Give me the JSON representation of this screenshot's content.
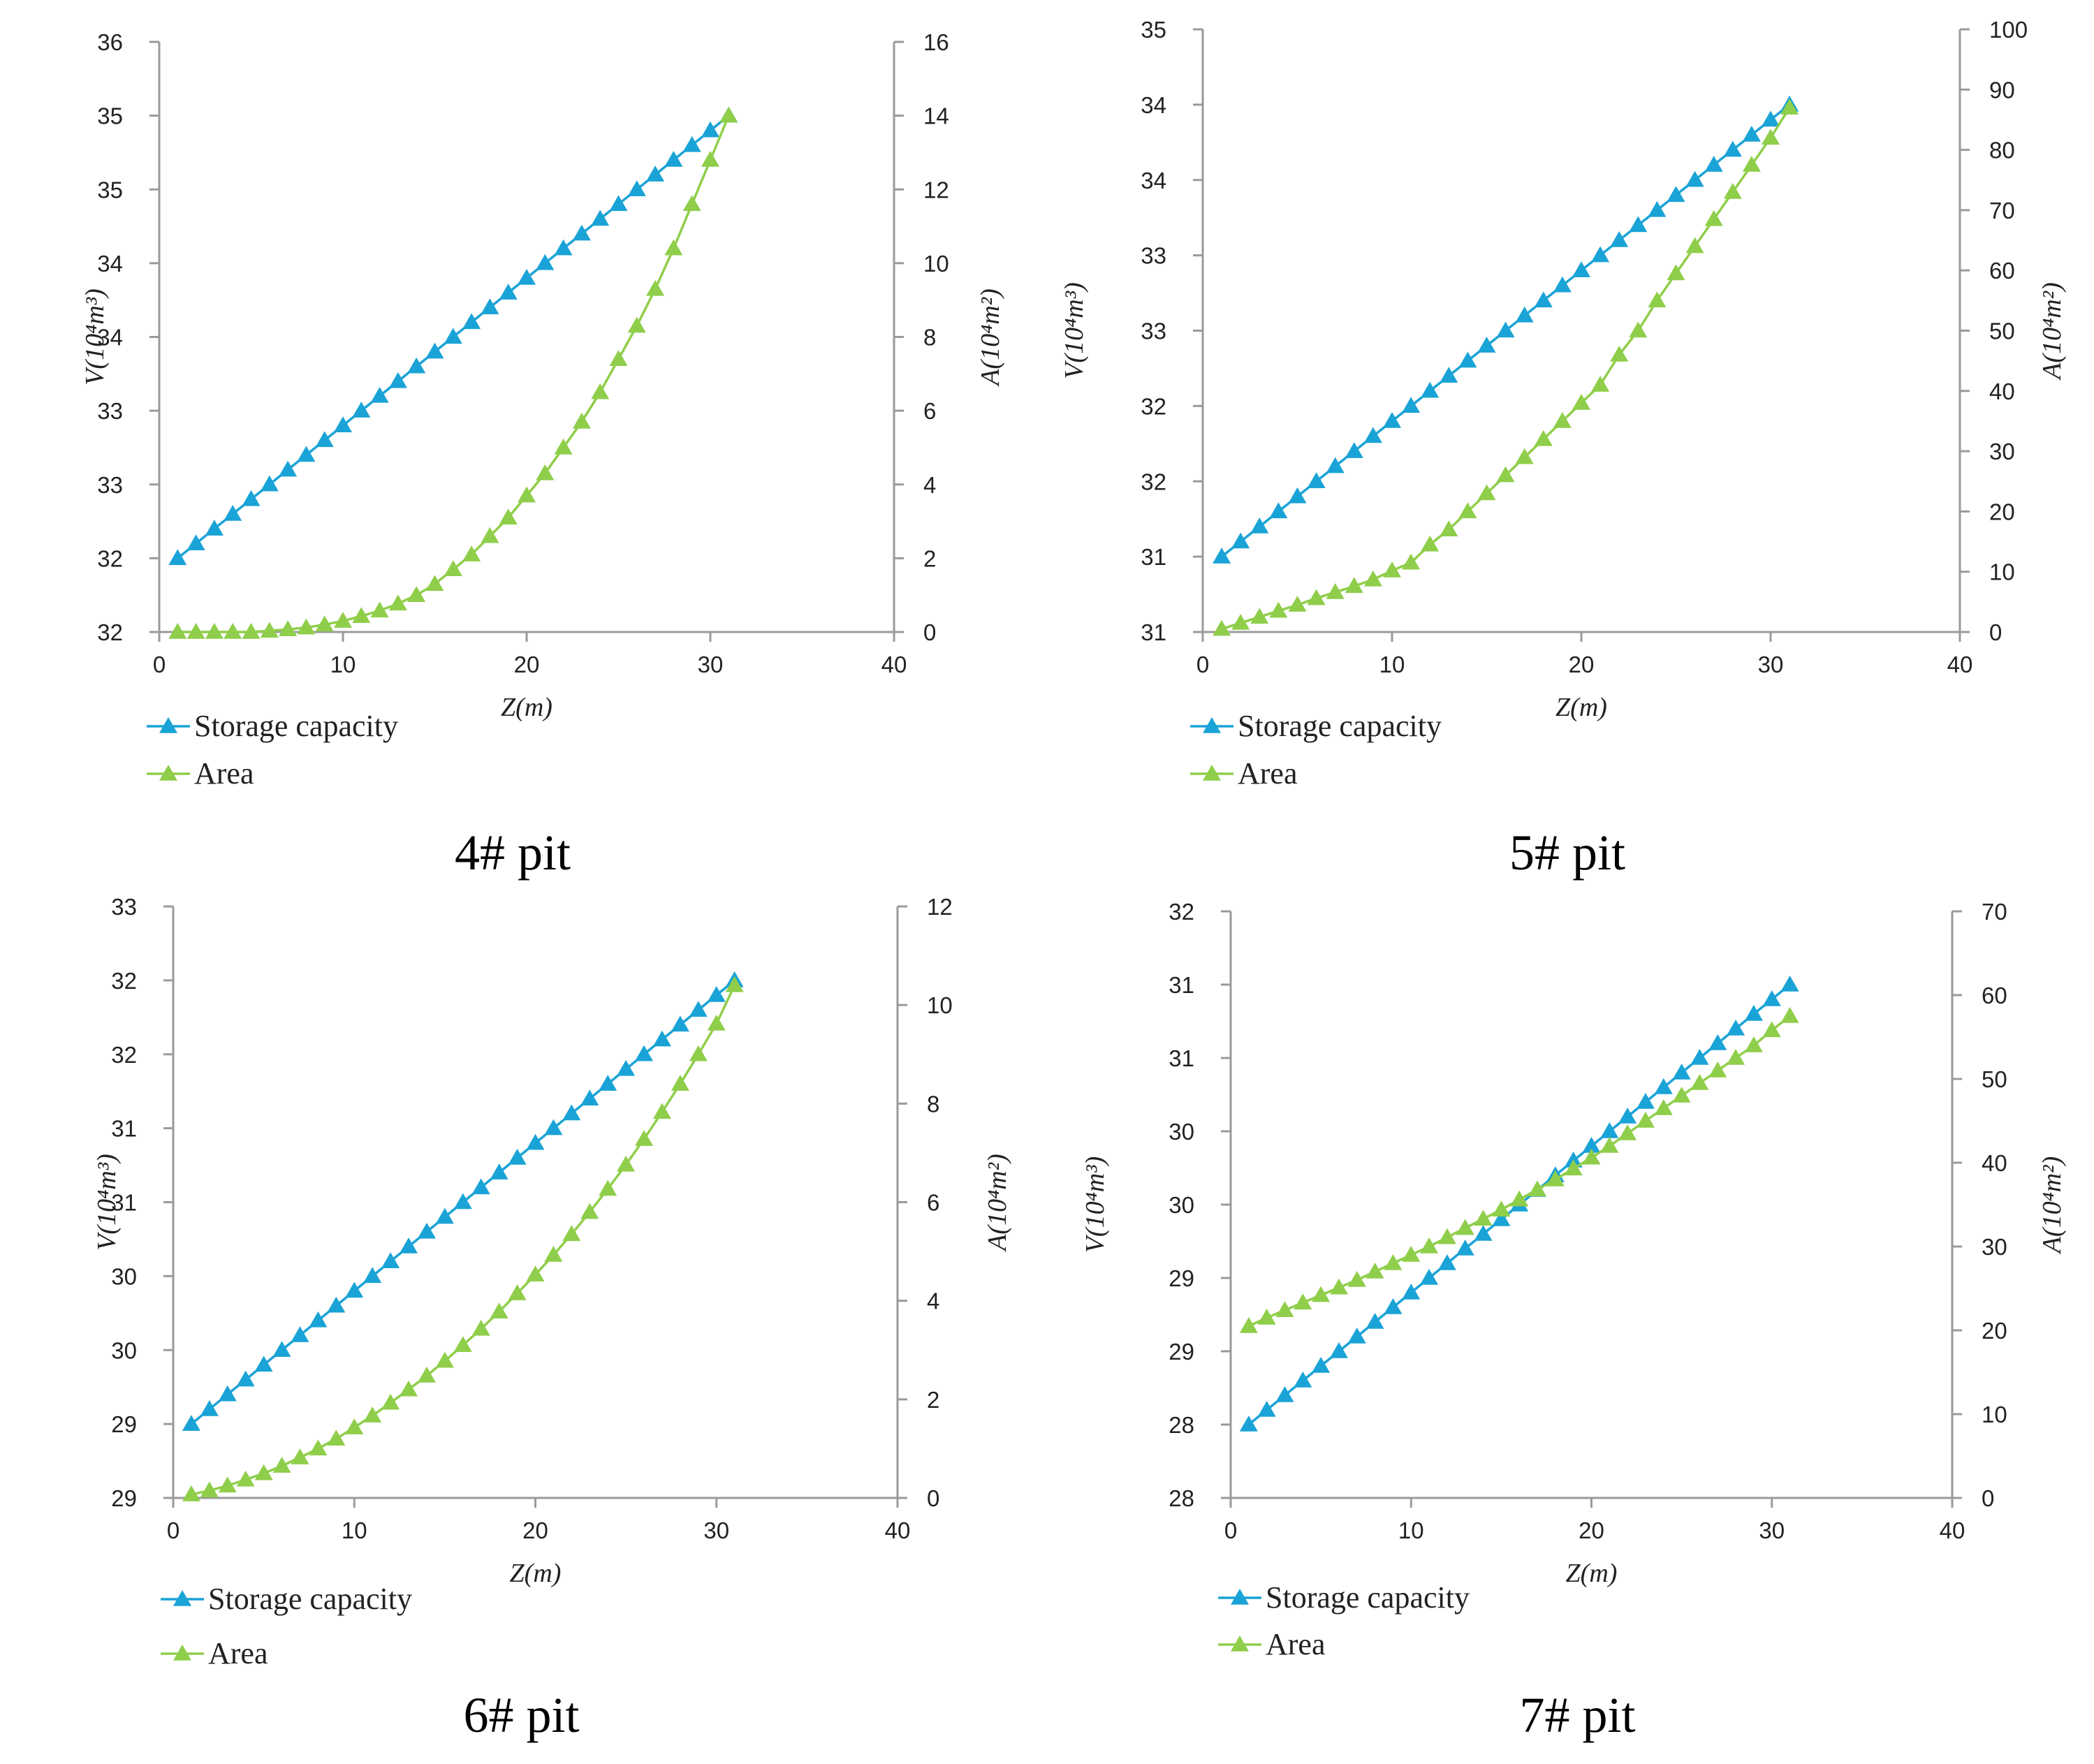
{
  "colors": {
    "storage": "#1aa3d6",
    "area": "#8fce4a",
    "axis": "#9a9a9a"
  },
  "chart_data": [
    {
      "type": "line",
      "caption": "4# pit",
      "xlabel": "Z(m)",
      "ylabel_left": "V(10⁴m³)",
      "ylabel_right": "A(10⁴m²)",
      "xlim": [
        0,
        40
      ],
      "xticks": [
        "0",
        "10",
        "20",
        "30",
        "40"
      ],
      "ylim_left": [
        32,
        36
      ],
      "yticks_left": [
        "32",
        "32",
        "33",
        "33",
        "34",
        "34",
        "35",
        "35",
        "36"
      ],
      "ylim_right": [
        0,
        16
      ],
      "yticks_right": [
        "0",
        "2",
        "4",
        "6",
        "8",
        "10",
        "12",
        "14",
        "16"
      ],
      "x": [
        1,
        2,
        3,
        4,
        5,
        6,
        7,
        8,
        9,
        10,
        11,
        12,
        13,
        14,
        15,
        16,
        17,
        18,
        19,
        20,
        21,
        22,
        23,
        24,
        25,
        26,
        27,
        28,
        29,
        30,
        31
      ],
      "series": [
        {
          "name": "Storage capacity",
          "axis": "left",
          "values": [
            32.5,
            32.6,
            32.7,
            32.8,
            32.9,
            33.0,
            33.1,
            33.2,
            33.3,
            33.4,
            33.5,
            33.6,
            33.7,
            33.8,
            33.9,
            34.0,
            34.1,
            34.2,
            34.3,
            34.4,
            34.5,
            34.6,
            34.7,
            34.8,
            34.9,
            35.0,
            35.1,
            35.2,
            35.3,
            35.4,
            35.5
          ]
        },
        {
          "name": "Area",
          "axis": "right",
          "values": [
            0,
            0,
            0,
            0,
            0,
            0.03,
            0.07,
            0.12,
            0.2,
            0.3,
            0.43,
            0.58,
            0.77,
            1.0,
            1.3,
            1.7,
            2.1,
            2.6,
            3.1,
            3.7,
            4.3,
            5.0,
            5.7,
            6.5,
            7.4,
            8.3,
            9.3,
            10.4,
            11.6,
            12.8,
            14.0
          ]
        }
      ]
    },
    {
      "type": "line",
      "caption": "5# pit",
      "xlabel": "Z(m)",
      "ylabel_left": "V(10⁴m³)",
      "ylabel_right": "A(10⁴m²)",
      "xlim": [
        0,
        40
      ],
      "xticks": [
        "0",
        "10",
        "20",
        "30",
        "40"
      ],
      "ylim_left": [
        31,
        35
      ],
      "yticks_left": [
        "31",
        "31",
        "32",
        "32",
        "33",
        "33",
        "34",
        "34",
        "35"
      ],
      "ylim_right": [
        0,
        100
      ],
      "yticks_right": [
        "0",
        "10",
        "20",
        "30",
        "40",
        "50",
        "60",
        "70",
        "80",
        "90",
        "100"
      ],
      "x": [
        1,
        2,
        3,
        4,
        5,
        6,
        7,
        8,
        9,
        10,
        11,
        12,
        13,
        14,
        15,
        16,
        17,
        18,
        19,
        20,
        21,
        22,
        23,
        24,
        25,
        26,
        27,
        28,
        29,
        30,
        31
      ],
      "series": [
        {
          "name": "Storage capacity",
          "axis": "left",
          "values": [
            31.5,
            31.6,
            31.7,
            31.8,
            31.9,
            32.0,
            32.1,
            32.2,
            32.3,
            32.4,
            32.5,
            32.6,
            32.7,
            32.8,
            32.9,
            33.0,
            33.1,
            33.2,
            33.3,
            33.4,
            33.5,
            33.6,
            33.7,
            33.8,
            33.9,
            34.0,
            34.1,
            34.2,
            34.3,
            34.4,
            34.5
          ]
        },
        {
          "name": "Area",
          "axis": "right",
          "values": [
            0.5,
            1.5,
            2.5,
            3.5,
            4.5,
            5.6,
            6.6,
            7.6,
            8.7,
            10.2,
            11.5,
            14.5,
            17,
            20,
            23,
            26,
            29,
            32,
            35,
            38,
            41,
            46,
            50,
            55,
            59.5,
            64,
            68.5,
            73,
            77.5,
            82,
            87
          ]
        }
      ]
    },
    {
      "type": "line",
      "caption": "6# pit",
      "xlabel": "Z(m)",
      "ylabel_left": "V(10⁴m³)",
      "ylabel_right": "A(10⁴m²)",
      "xlim": [
        0,
        40
      ],
      "xticks": [
        "0",
        "10",
        "20",
        "30",
        "40"
      ],
      "ylim_left": [
        29,
        33
      ],
      "yticks_left": [
        "29",
        "29",
        "30",
        "30",
        "31",
        "31",
        "32",
        "32",
        "33"
      ],
      "ylim_right": [
        0,
        12
      ],
      "yticks_right": [
        "0",
        "2",
        "4",
        "6",
        "8",
        "10",
        "12"
      ],
      "x": [
        1,
        2,
        3,
        4,
        5,
        6,
        7,
        8,
        9,
        10,
        11,
        12,
        13,
        14,
        15,
        16,
        17,
        18,
        19,
        20,
        21,
        22,
        23,
        24,
        25,
        26,
        27,
        28,
        29,
        30,
        31
      ],
      "series": [
        {
          "name": "Storage capacity",
          "axis": "left",
          "values": [
            29.5,
            29.6,
            29.7,
            29.8,
            29.9,
            30.0,
            30.1,
            30.2,
            30.3,
            30.4,
            30.5,
            30.6,
            30.7,
            30.8,
            30.9,
            31.0,
            31.1,
            31.2,
            31.3,
            31.4,
            31.5,
            31.6,
            31.7,
            31.8,
            31.9,
            32.0,
            32.1,
            32.2,
            32.3,
            32.4,
            32.5
          ]
        },
        {
          "name": "Area",
          "axis": "right",
          "values": [
            0.07,
            0.15,
            0.25,
            0.37,
            0.5,
            0.65,
            0.82,
            1.0,
            1.2,
            1.43,
            1.67,
            1.93,
            2.2,
            2.48,
            2.78,
            3.1,
            3.43,
            3.78,
            4.15,
            4.53,
            4.93,
            5.35,
            5.8,
            6.27,
            6.76,
            7.28,
            7.83,
            8.4,
            9.0,
            9.62,
            10.4
          ]
        }
      ]
    },
    {
      "type": "line",
      "caption": "7# pit",
      "xlabel": "Z(m)",
      "ylabel_left": "V(10⁴m³)",
      "ylabel_right": "A(10⁴m²)",
      "xlim": [
        0,
        40
      ],
      "xticks": [
        "0",
        "10",
        "20",
        "30",
        "40"
      ],
      "ylim_left": [
        28,
        32
      ],
      "yticks_left": [
        "28",
        "28",
        "29",
        "29",
        "30",
        "30",
        "31",
        "31",
        "32"
      ],
      "ylim_right": [
        0,
        70
      ],
      "yticks_right": [
        "0",
        "10",
        "20",
        "30",
        "40",
        "50",
        "60",
        "70"
      ],
      "x": [
        1,
        2,
        3,
        4,
        5,
        6,
        7,
        8,
        9,
        10,
        11,
        12,
        13,
        14,
        15,
        16,
        17,
        18,
        19,
        20,
        21,
        22,
        23,
        24,
        25,
        26,
        27,
        28,
        29,
        30,
        31
      ],
      "series": [
        {
          "name": "Storage capacity",
          "axis": "left",
          "values": [
            28.5,
            28.6,
            28.7,
            28.8,
            28.9,
            29.0,
            29.1,
            29.2,
            29.3,
            29.4,
            29.5,
            29.6,
            29.7,
            29.8,
            29.9,
            30.0,
            30.1,
            30.2,
            30.3,
            30.4,
            30.5,
            30.6,
            30.7,
            30.8,
            30.9,
            31.0,
            31.1,
            31.2,
            31.3,
            31.4,
            31.5
          ]
        },
        {
          "name": "Area",
          "axis": "right",
          "values": [
            20.5,
            21.5,
            22.4,
            23.3,
            24.2,
            25.1,
            26.0,
            27.0,
            28.0,
            29.0,
            30.0,
            31.1,
            32.2,
            33.3,
            34.4,
            35.6,
            36.8,
            38.0,
            39.3,
            40.6,
            42.0,
            43.5,
            45.0,
            46.5,
            48.0,
            49.5,
            51.0,
            52.5,
            54.0,
            55.8,
            57.5
          ]
        }
      ]
    }
  ]
}
